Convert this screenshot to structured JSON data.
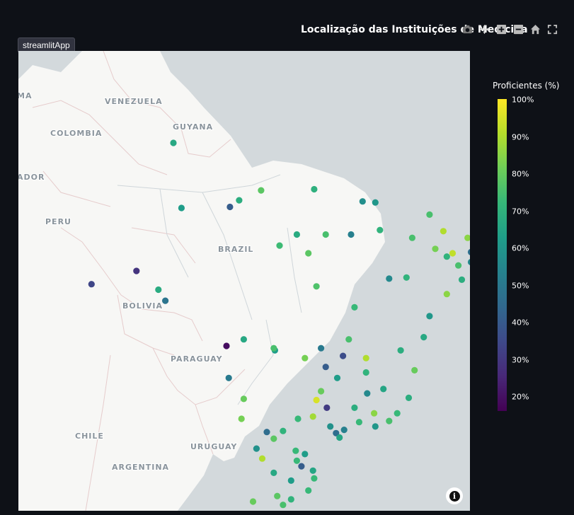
{
  "app_badge": "streamlitApp",
  "title": "Localização das Instituições de Medicina",
  "toolbar": {
    "icons": [
      "camera-icon",
      "pan-icon",
      "zoom-in-icon",
      "zoom-out-icon",
      "home-icon",
      "fullscreen-icon"
    ]
  },
  "legend": {
    "title": "Proficientes (%)",
    "ticks": [
      "100%",
      "90%",
      "80%",
      "70%",
      "60%",
      "50%",
      "40%",
      "30%",
      "20%"
    ]
  },
  "map_labels": {
    "venezuela": "VENEZUELA",
    "colombia": "COLOMBIA",
    "guyana": "GUYANA",
    "ecuador": "ADOR",
    "panama": "MA",
    "peru": "PERU",
    "brazil": "BRAZIL",
    "bolivia": "BOLIVIA",
    "paraguay": "PARAGUAY",
    "chile": "CHILE",
    "uruguay": "URUGUAY",
    "argentina": "ARGENTINA"
  },
  "info_label": "i",
  "colors": {
    "background": "#0e1117",
    "ocean": "#d3d9dc",
    "land": "#f7f7f5"
  },
  "chart_data": {
    "type": "scatter",
    "title": "Localização das Instituições de Medicina",
    "colorbar_title": "Proficientes (%)",
    "color_range": [
      15,
      100
    ],
    "colorscale": "viridis",
    "points": [
      {
        "lon": -60.7,
        "lat": 2.8,
        "v": 66
      },
      {
        "lon": -53.1,
        "lat": -1.5,
        "v": 78
      },
      {
        "lon": -48.5,
        "lat": -1.4,
        "v": 69
      },
      {
        "lon": -44.3,
        "lat": -2.5,
        "v": 57
      },
      {
        "lon": -43.2,
        "lat": -2.6,
        "v": 60
      },
      {
        "lon": -38.5,
        "lat": -3.7,
        "v": 75
      },
      {
        "lon": -37.3,
        "lat": -5.2,
        "v": 90
      },
      {
        "lon": -35.2,
        "lat": -5.8,
        "v": 85
      },
      {
        "lon": -45.3,
        "lat": -5.5,
        "v": 52
      },
      {
        "lon": -47.5,
        "lat": -5.5,
        "v": 75
      },
      {
        "lon": -50.0,
        "lat": -5.5,
        "v": 67
      },
      {
        "lon": -51.5,
        "lat": -6.5,
        "v": 73
      },
      {
        "lon": -60.0,
        "lat": -3.1,
        "v": 62
      },
      {
        "lon": -55.0,
        "lat": -2.4,
        "v": 68
      },
      {
        "lon": -55.8,
        "lat": -3.0,
        "v": 40
      },
      {
        "lon": -63.9,
        "lat": -8.8,
        "v": 28
      },
      {
        "lon": -67.8,
        "lat": -10.0,
        "v": 33
      },
      {
        "lon": -62.0,
        "lat": -10.5,
        "v": 67
      },
      {
        "lon": -61.4,
        "lat": -11.5,
        "v": 48
      },
      {
        "lon": -48.3,
        "lat": -10.2,
        "v": 76
      },
      {
        "lon": -49.0,
        "lat": -7.2,
        "v": 78
      },
      {
        "lon": -42.8,
        "lat": -5.1,
        "v": 70
      },
      {
        "lon": -40.0,
        "lat": -5.8,
        "v": 75
      },
      {
        "lon": -38.0,
        "lat": -6.8,
        "v": 82
      },
      {
        "lon": -36.5,
        "lat": -7.2,
        "v": 92
      },
      {
        "lon": -34.9,
        "lat": -7.1,
        "v": 46
      },
      {
        "lon": -34.9,
        "lat": -8.0,
        "v": 55
      },
      {
        "lon": -36.0,
        "lat": -8.3,
        "v": 75
      },
      {
        "lon": -37.0,
        "lat": -7.5,
        "v": 70
      },
      {
        "lon": -35.7,
        "lat": -9.6,
        "v": 68
      },
      {
        "lon": -37.0,
        "lat": -10.9,
        "v": 85
      },
      {
        "lon": -38.5,
        "lat": -12.9,
        "v": 60
      },
      {
        "lon": -40.5,
        "lat": -9.4,
        "v": 70
      },
      {
        "lon": -42.0,
        "lat": -9.5,
        "v": 55
      },
      {
        "lon": -39.0,
        "lat": -14.8,
        "v": 66
      },
      {
        "lon": -45.0,
        "lat": -12.1,
        "v": 72
      },
      {
        "lon": -47.9,
        "lat": -15.8,
        "v": 50
      },
      {
        "lon": -49.3,
        "lat": -16.7,
        "v": 82
      },
      {
        "lon": -51.9,
        "lat": -16.0,
        "v": 62
      },
      {
        "lon": -56.1,
        "lat": -15.6,
        "v": 18
      },
      {
        "lon": -54.6,
        "lat": -15.0,
        "v": 66
      },
      {
        "lon": -52.0,
        "lat": -15.8,
        "v": 75
      },
      {
        "lon": -54.6,
        "lat": -20.4,
        "v": 80
      },
      {
        "lon": -55.9,
        "lat": -18.5,
        "v": 50
      },
      {
        "lon": -54.8,
        "lat": -22.2,
        "v": 82
      },
      {
        "lon": -52.6,
        "lat": -23.4,
        "v": 45
      },
      {
        "lon": -51.2,
        "lat": -23.3,
        "v": 70
      },
      {
        "lon": -49.3,
        "lat": -25.4,
        "v": 62
      },
      {
        "lon": -48.6,
        "lat": -26.9,
        "v": 65
      },
      {
        "lon": -48.5,
        "lat": -27.6,
        "v": 72
      },
      {
        "lon": -51.2,
        "lat": -30.0,
        "v": 75
      },
      {
        "lon": -53.8,
        "lat": -29.7,
        "v": 80
      },
      {
        "lon": -52.4,
        "lat": -31.8,
        "v": 78
      },
      {
        "lon": -50.5,
        "lat": -29.5,
        "v": 70
      },
      {
        "lon": -47.1,
        "lat": -22.9,
        "v": 58
      },
      {
        "lon": -46.6,
        "lat": -23.5,
        "v": 45
      },
      {
        "lon": -46.3,
        "lat": -23.9,
        "v": 65
      },
      {
        "lon": -45.9,
        "lat": -23.2,
        "v": 52
      },
      {
        "lon": -44.6,
        "lat": -22.5,
        "v": 72
      },
      {
        "lon": -43.2,
        "lat": -22.9,
        "v": 60
      },
      {
        "lon": -42.0,
        "lat": -22.4,
        "v": 75
      },
      {
        "lon": -40.3,
        "lat": -20.3,
        "v": 68
      },
      {
        "lon": -43.9,
        "lat": -19.9,
        "v": 55
      },
      {
        "lon": -42.5,
        "lat": -19.5,
        "v": 65
      },
      {
        "lon": -44.0,
        "lat": -18.0,
        "v": 70
      },
      {
        "lon": -46.5,
        "lat": -18.5,
        "v": 62
      },
      {
        "lon": -47.9,
        "lat": -19.7,
        "v": 80
      },
      {
        "lon": -48.3,
        "lat": -20.5,
        "v": 95
      },
      {
        "lon": -47.4,
        "lat": -21.2,
        "v": 30
      },
      {
        "lon": -48.6,
        "lat": -22.0,
        "v": 88
      },
      {
        "lon": -49.9,
        "lat": -22.2,
        "v": 72
      },
      {
        "lon": -47.5,
        "lat": -17.5,
        "v": 40
      },
      {
        "lon": -45.0,
        "lat": -21.2,
        "v": 68
      },
      {
        "lon": -43.3,
        "lat": -21.7,
        "v": 85
      },
      {
        "lon": -41.3,
        "lat": -21.7,
        "v": 72
      },
      {
        "lon": -45.5,
        "lat": -15.0,
        "v": 75
      },
      {
        "lon": -46.0,
        "lat": -16.5,
        "v": 35
      },
      {
        "lon": -44.0,
        "lat": -16.7,
        "v": 90
      },
      {
        "lon": -41.0,
        "lat": -16.0,
        "v": 68
      },
      {
        "lon": -39.8,
        "lat": -17.8,
        "v": 80
      },
      {
        "lon": -52.0,
        "lat": -27.1,
        "v": 66
      },
      {
        "lon": -50.0,
        "lat": -26.0,
        "v": 72
      },
      {
        "lon": -49.0,
        "lat": -28.7,
        "v": 72
      },
      {
        "lon": -50.5,
        "lat": -27.8,
        "v": 62
      },
      {
        "lon": -51.7,
        "lat": -29.2,
        "v": 78
      },
      {
        "lon": -53.5,
        "lat": -24.9,
        "v": 58
      },
      {
        "lon": -53.0,
        "lat": -25.8,
        "v": 90
      },
      {
        "lon": -52.0,
        "lat": -24.0,
        "v": 78
      },
      {
        "lon": -50.1,
        "lat": -25.1,
        "v": 72
      },
      {
        "lon": -49.6,
        "lat": -26.5,
        "v": 40
      }
    ]
  }
}
